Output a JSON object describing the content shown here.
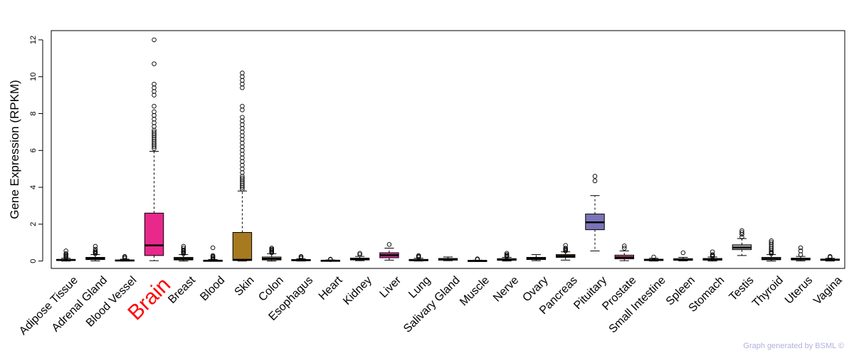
{
  "footer": {
    "credit": "Graph generated by BSML ©"
  },
  "chart_data": {
    "type": "box",
    "ylabel": "Gene Expression (RPKM)",
    "ylim": [
      -0.4,
      12.5
    ],
    "yticks": [
      0,
      2,
      4,
      6,
      8,
      10,
      12
    ],
    "highlight_category": "Brain",
    "highlight_color": "#ff0000",
    "categories": [
      {
        "name": "Adipose Tissue",
        "color": "#cccccc",
        "q1": 0.03,
        "median": 0.06,
        "q3": 0.09,
        "whisker_low": 0.0,
        "whisker_high": 0.15,
        "outliers": [
          0.2,
          0.25,
          0.3,
          0.35,
          0.4,
          0.55
        ]
      },
      {
        "name": "Adrenal Gland",
        "color": "#c08040",
        "q1": 0.08,
        "median": 0.13,
        "q3": 0.2,
        "whisker_low": 0.01,
        "whisker_high": 0.35,
        "outliers": [
          0.4,
          0.45,
          0.5,
          0.55,
          0.65,
          0.8
        ]
      },
      {
        "name": "Blood Vessel",
        "color": "#dddddd",
        "q1": 0.01,
        "median": 0.03,
        "q3": 0.06,
        "whisker_low": 0.0,
        "whisker_high": 0.1,
        "outliers": [
          0.15,
          0.2,
          0.25
        ]
      },
      {
        "name": "Brain",
        "color": "#e8288a",
        "q1": 0.3,
        "median": 0.85,
        "q3": 2.6,
        "whisker_low": 0.02,
        "whisker_high": 5.95,
        "outliers": [
          6.1,
          6.2,
          6.3,
          6.4,
          6.5,
          6.6,
          6.7,
          6.8,
          6.9,
          7.0,
          7.1,
          7.3,
          7.5,
          7.7,
          7.9,
          8.1,
          8.4,
          9.0,
          9.2,
          9.4,
          9.6,
          10.7,
          12.0
        ]
      },
      {
        "name": "Breast",
        "color": "#7aab30",
        "q1": 0.06,
        "median": 0.12,
        "q3": 0.2,
        "whisker_low": 0.0,
        "whisker_high": 0.35,
        "outliers": [
          0.4,
          0.45,
          0.5,
          0.55,
          0.6,
          0.7,
          0.8
        ]
      },
      {
        "name": "Blood",
        "color": "#dddddd",
        "q1": 0.0,
        "median": 0.02,
        "q3": 0.04,
        "whisker_low": 0.0,
        "whisker_high": 0.08,
        "outliers": [
          0.1,
          0.15,
          0.2,
          0.25,
          0.3,
          0.72
        ]
      },
      {
        "name": "Skin",
        "color": "#a87a20",
        "q1": 0.03,
        "median": 0.07,
        "q3": 1.55,
        "whisker_low": 0.0,
        "whisker_high": 3.8,
        "outliers": [
          3.9,
          4.0,
          4.1,
          4.2,
          4.3,
          4.4,
          4.5,
          4.6,
          4.8,
          5.0,
          5.2,
          5.4,
          5.6,
          5.8,
          6.0,
          6.2,
          6.4,
          6.6,
          6.8,
          7.0,
          7.2,
          7.4,
          7.6,
          7.8,
          8.2,
          8.4,
          9.4,
          9.6,
          9.8,
          10.0,
          10.2
        ]
      },
      {
        "name": "Colon",
        "color": "#c8a890",
        "q1": 0.06,
        "median": 0.13,
        "q3": 0.22,
        "whisker_low": 0.0,
        "whisker_high": 0.4,
        "outliers": [
          0.45,
          0.5,
          0.55,
          0.6,
          0.65,
          0.7
        ]
      },
      {
        "name": "Esophagus",
        "color": "#d8b890",
        "q1": 0.02,
        "median": 0.05,
        "q3": 0.08,
        "whisker_low": 0.0,
        "whisker_high": 0.12,
        "outliers": [
          0.15,
          0.2,
          0.25
        ]
      },
      {
        "name": "Heart",
        "color": "#9966cc",
        "q1": 0.0,
        "median": 0.02,
        "q3": 0.04,
        "whisker_low": 0.0,
        "whisker_high": 0.06,
        "outliers": [
          0.08,
          0.1
        ]
      },
      {
        "name": "Kidney",
        "color": "#cccccc",
        "q1": 0.06,
        "median": 0.1,
        "q3": 0.16,
        "whisker_low": 0.02,
        "whisker_high": 0.25,
        "outliers": [
          0.35,
          0.42
        ]
      },
      {
        "name": "Liver",
        "color": "#cc3399",
        "q1": 0.18,
        "median": 0.32,
        "q3": 0.45,
        "whisker_low": 0.05,
        "whisker_high": 0.7,
        "outliers": [
          0.9
        ]
      },
      {
        "name": "Lung",
        "color": "#cccccc",
        "q1": 0.02,
        "median": 0.05,
        "q3": 0.09,
        "whisker_low": 0.0,
        "whisker_high": 0.15,
        "outliers": [
          0.2,
          0.25,
          0.3
        ]
      },
      {
        "name": "Salivary Gland",
        "color": "#cccccc",
        "q1": 0.05,
        "median": 0.09,
        "q3": 0.14,
        "whisker_low": 0.02,
        "whisker_high": 0.22,
        "outliers": []
      },
      {
        "name": "Muscle",
        "color": "#cccccc",
        "q1": 0.0,
        "median": 0.01,
        "q3": 0.03,
        "whisker_low": 0.0,
        "whisker_high": 0.05,
        "outliers": [
          0.08,
          0.12
        ]
      },
      {
        "name": "Nerve",
        "color": "#dddddd",
        "q1": 0.04,
        "median": 0.08,
        "q3": 0.13,
        "whisker_low": 0.0,
        "whisker_high": 0.2,
        "outliers": [
          0.25,
          0.3,
          0.35,
          0.42
        ]
      },
      {
        "name": "Ovary",
        "color": "#88bbaa",
        "q1": 0.08,
        "median": 0.14,
        "q3": 0.2,
        "whisker_low": 0.02,
        "whisker_high": 0.35,
        "outliers": []
      },
      {
        "name": "Pancreas",
        "color": "#aa7733",
        "q1": 0.2,
        "median": 0.27,
        "q3": 0.35,
        "whisker_low": 0.05,
        "whisker_high": 0.5,
        "outliers": [
          0.55,
          0.6,
          0.65,
          0.7,
          0.85
        ]
      },
      {
        "name": "Pituitary",
        "color": "#7a74b8",
        "q1": 1.7,
        "median": 2.1,
        "q3": 2.55,
        "whisker_low": 0.55,
        "whisker_high": 3.55,
        "outliers": [
          4.35,
          4.6
        ]
      },
      {
        "name": "Prostate",
        "color": "#dd5599",
        "q1": 0.12,
        "median": 0.2,
        "q3": 0.32,
        "whisker_low": 0.02,
        "whisker_high": 0.55,
        "outliers": [
          0.7,
          0.82
        ]
      },
      {
        "name": "Small Intestine",
        "color": "#cccccc",
        "q1": 0.03,
        "median": 0.06,
        "q3": 0.1,
        "whisker_low": 0.0,
        "whisker_high": 0.15,
        "outliers": [
          0.22
        ]
      },
      {
        "name": "Spleen",
        "color": "#cccccc",
        "q1": 0.04,
        "median": 0.08,
        "q3": 0.13,
        "whisker_low": 0.01,
        "whisker_high": 0.2,
        "outliers": [
          0.45
        ]
      },
      {
        "name": "Stomach",
        "color": "#cccccc",
        "q1": 0.05,
        "median": 0.09,
        "q3": 0.14,
        "whisker_low": 0.0,
        "whisker_high": 0.22,
        "outliers": [
          0.25,
          0.3,
          0.35,
          0.5
        ]
      },
      {
        "name": "Testis",
        "color": "#aaaaaa",
        "q1": 0.62,
        "median": 0.73,
        "q3": 0.88,
        "whisker_low": 0.3,
        "whisker_high": 1.22,
        "outliers": [
          1.3,
          1.45,
          1.55,
          1.65
        ]
      },
      {
        "name": "Thyroid",
        "color": "#cccccc",
        "q1": 0.07,
        "median": 0.12,
        "q3": 0.2,
        "whisker_low": 0.0,
        "whisker_high": 0.35,
        "outliers": [
          0.4,
          0.45,
          0.5,
          0.6,
          0.7,
          0.8,
          0.9,
          1.0,
          1.1
        ]
      },
      {
        "name": "Uterus",
        "color": "#cccccc",
        "q1": 0.06,
        "median": 0.1,
        "q3": 0.16,
        "whisker_low": 0.01,
        "whisker_high": 0.25,
        "outliers": [
          0.35,
          0.55,
          0.72
        ]
      },
      {
        "name": "Vagina",
        "color": "#cccccc",
        "q1": 0.04,
        "median": 0.07,
        "q3": 0.11,
        "whisker_low": 0.0,
        "whisker_high": 0.15,
        "outliers": [
          0.2,
          0.25
        ]
      }
    ]
  }
}
